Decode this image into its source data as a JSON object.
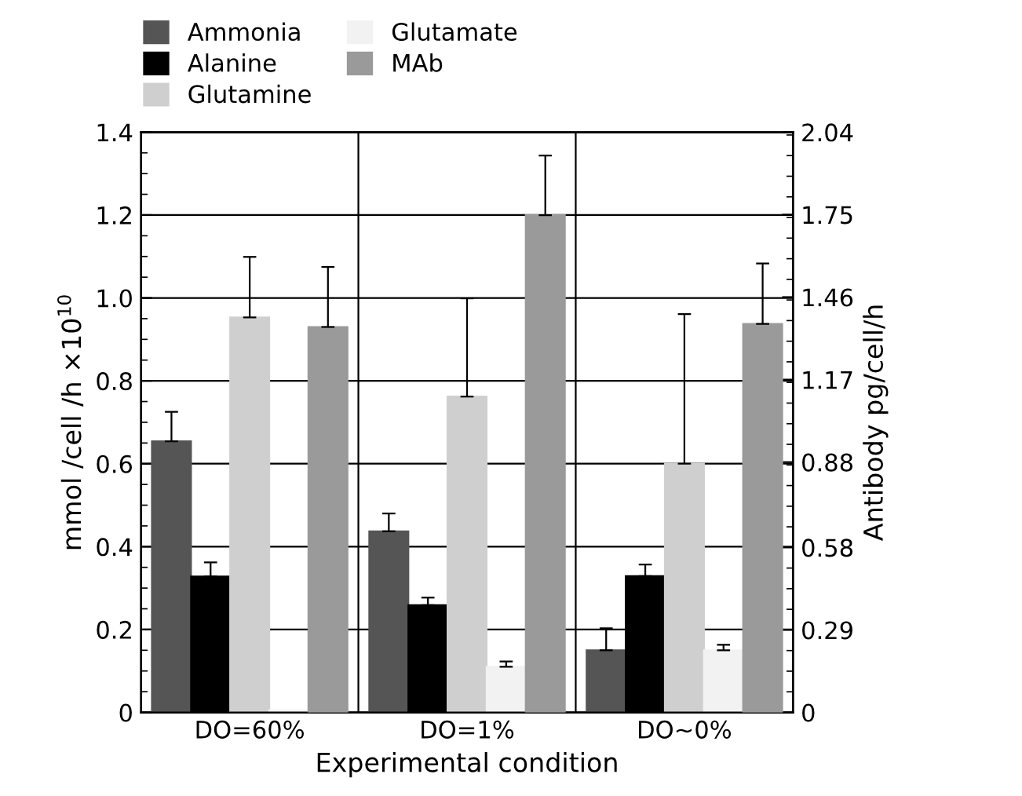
{
  "chart_data": {
    "type": "bar",
    "categories": [
      "DO=60%",
      "DO=1%",
      "DO~0%"
    ],
    "xlabel": "Experimental condition",
    "ylabel": "mmol /cell /h ×10$^{10}$",
    "y2label": "Antibody pg/cell/h",
    "ylim": [
      0,
      1.4
    ],
    "yticks": [
      0,
      0.2,
      0.4,
      0.6,
      0.8,
      {
        "value": 1.0,
        "label": "1.0"
      },
      1.2,
      1.4
    ],
    "y2lim": [
      0,
      2.04
    ],
    "y2ticks": [
      0,
      0.29,
      0.58,
      0.88,
      1.17,
      1.46,
      1.75,
      2.04
    ],
    "grid": true,
    "legend": "top left",
    "series": [
      {
        "name": "Ammonia",
        "color": "#555555",
        "values": [
          0.654,
          0.437,
          0.15
        ],
        "errors": [
          [
            0.654,
            0.725
          ],
          [
            0.437,
            0.48
          ],
          [
            0.15,
            0.203
          ]
        ]
      },
      {
        "name": "Alanine",
        "color": "#000000",
        "values": [
          0.328,
          0.259,
          0.329
        ],
        "errors": [
          [
            0.328,
            0.362
          ],
          [
            0.259,
            0.277
          ],
          [
            0.329,
            0.357
          ]
        ]
      },
      {
        "name": "Glutamine",
        "color": "#cfcfcf",
        "values": [
          0.953,
          0.762,
          0.6
        ],
        "errors": [
          [
            0.953,
            1.099
          ],
          [
            0.762,
            0.999
          ],
          [
            0.6,
            0.961
          ]
        ]
      },
      {
        "name": "Glutamate",
        "color": "#f2f2f2",
        "values": [
          0.005,
          0.11,
          0.15
        ],
        "errors": [
          null,
          [
            0.11,
            0.123
          ],
          [
            0.15,
            0.163
          ]
        ]
      },
      {
        "name": "MAb",
        "color": "#9a9a9a",
        "axis": "y2",
        "values": [
          1.355,
          1.748,
          1.366
        ],
        "errors": [
          [
            1.355,
            1.566
          ],
          [
            1.748,
            1.958
          ],
          [
            1.366,
            1.578
          ]
        ]
      }
    ]
  }
}
